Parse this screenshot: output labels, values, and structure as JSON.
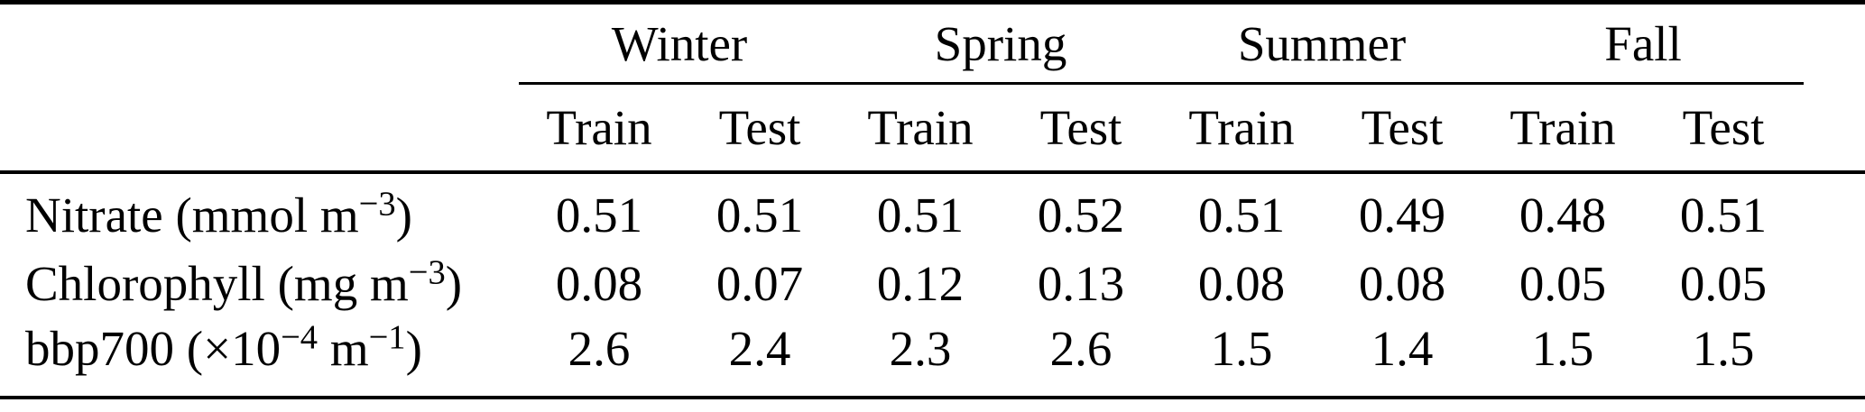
{
  "table": {
    "seasons": [
      {
        "label": "Winter"
      },
      {
        "label": "Spring"
      },
      {
        "label": "Summer"
      },
      {
        "label": "Fall"
      }
    ],
    "subheaders": [
      "Train",
      "Test",
      "Train",
      "Test",
      "Train",
      "Test",
      "Train",
      "Test"
    ],
    "rows": [
      {
        "label_parts": [
          "Nitrate (mmol m",
          "−3",
          ")"
        ],
        "values": [
          "0.51",
          "0.51",
          "0.51",
          "0.52",
          "0.51",
          "0.49",
          "0.48",
          "0.51"
        ]
      },
      {
        "label_parts": [
          "Chlorophyll (mg m",
          "−3",
          ")"
        ],
        "values": [
          "0.08",
          "0.07",
          "0.12",
          "0.13",
          "0.08",
          "0.08",
          "0.05",
          "0.05"
        ]
      },
      {
        "label_parts": [
          "bbp700 (×10",
          "−4",
          " m",
          "−1",
          ")"
        ],
        "values": [
          "2.6",
          "2.4",
          "2.3",
          "2.6",
          "1.5",
          "1.4",
          "1.5",
          "1.5"
        ]
      }
    ],
    "colors": {
      "rule": "#000000",
      "text": "#000000",
      "background": "#ffffff"
    }
  }
}
